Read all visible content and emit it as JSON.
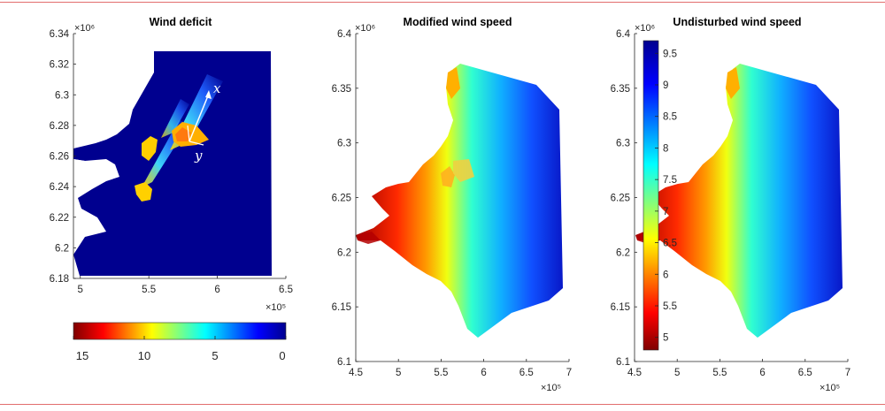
{
  "figure": {
    "colors": {
      "jet": [
        "#7f0000",
        "#ff0000",
        "#ffff00",
        "#00ffff",
        "#0000ff",
        "#00008f"
      ],
      "land": "#ffffff",
      "deficit_background": "#00008f",
      "rule": "#e26d6d"
    }
  },
  "chart_data": [
    {
      "type": "heatmap",
      "title": "Wind deficit",
      "xlim": [
        4.95,
        6.5
      ],
      "ylim": [
        6.18,
        6.34
      ],
      "xticks": [
        5,
        5.5,
        6,
        6.5
      ],
      "yticks": [
        6.18,
        6.2,
        6.22,
        6.24,
        6.26,
        6.28,
        6.3,
        6.32,
        6.34
      ],
      "xtick_labels": [
        "5",
        "5.5",
        "6",
        "6.5"
      ],
      "ytick_labels": [
        "6.18",
        "6.2",
        "6.22",
        "6.24",
        "6.26",
        "6.28",
        "6.3",
        "6.32",
        "6.34"
      ],
      "x_exponent": "×10⁵",
      "y_exponent": "×10⁶",
      "colorbar": {
        "orientation": "horizontal",
        "location": "below",
        "range": [
          15,
          0
        ],
        "ticks": [
          15,
          10,
          5,
          0
        ],
        "tick_labels": [
          "15",
          "10",
          "5",
          "0"
        ]
      },
      "axis_annotations": [
        "x",
        "y"
      ]
    },
    {
      "type": "heatmap",
      "title": "Modified wind speed",
      "xlim": [
        4.5,
        7
      ],
      "ylim": [
        6.1,
        6.4
      ],
      "xticks": [
        4.5,
        5,
        5.5,
        6,
        6.5,
        7
      ],
      "yticks": [
        6.1,
        6.15,
        6.2,
        6.25,
        6.3,
        6.35,
        6.4
      ],
      "xtick_labels": [
        "4.5",
        "5",
        "5.5",
        "6",
        "6.5",
        "7"
      ],
      "ytick_labels": [
        "6.1",
        "6.15",
        "6.2",
        "6.25",
        "6.3",
        "6.35",
        "6.4"
      ],
      "x_exponent": "×10⁵",
      "y_exponent": "×10⁶"
    },
    {
      "type": "heatmap",
      "title": "Undisturbed wind speed",
      "xlim": [
        4.5,
        7
      ],
      "ylim": [
        6.1,
        6.4
      ],
      "xticks": [
        4.5,
        5,
        5.5,
        6,
        6.5,
        7
      ],
      "yticks": [
        6.1,
        6.15,
        6.2,
        6.25,
        6.3,
        6.35,
        6.4
      ],
      "xtick_labels": [
        "4.5",
        "5",
        "5.5",
        "6",
        "6.5",
        "7"
      ],
      "ytick_labels": [
        "6.1",
        "6.15",
        "6.2",
        "6.25",
        "6.3",
        "6.35",
        "6.4"
      ],
      "x_exponent": "×10⁵",
      "y_exponent": "×10⁶",
      "colorbar": {
        "orientation": "vertical",
        "location": "inside-left",
        "range": [
          4.8,
          9.7
        ],
        "ticks": [
          5,
          5.5,
          6,
          6.5,
          7,
          7.5,
          8,
          8.5,
          9,
          9.5
        ],
        "tick_labels": [
          "5",
          "5.5",
          "6",
          "6.5",
          "7",
          "7.5",
          "8",
          "8.5",
          "9",
          "9.5"
        ]
      }
    }
  ]
}
